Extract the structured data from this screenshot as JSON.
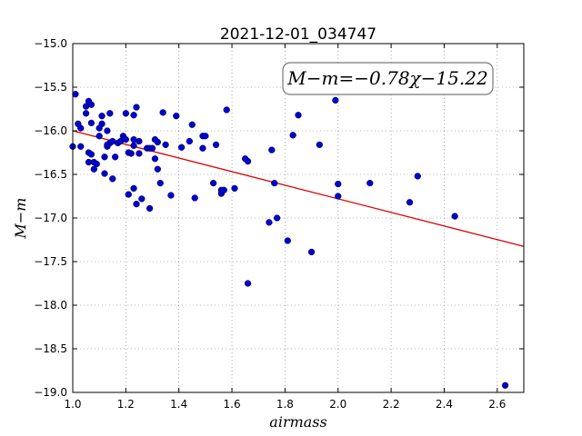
{
  "chart_data": {
    "type": "scatter",
    "title": "2021-12-01_034747",
    "xlabel": "airmass",
    "ylabel": "M−m",
    "xlim": [
      1.0,
      2.7
    ],
    "ylim": [
      -19.0,
      -15.0
    ],
    "y_inverted": true,
    "grid": true,
    "x_ticks": [
      "1.0",
      "1.2",
      "1.4",
      "1.6",
      "1.8",
      "2.0",
      "2.2",
      "2.4",
      "2.6"
    ],
    "y_ticks": [
      "−15.0",
      "−15.5",
      "−16.0",
      "−16.5",
      "−17.0",
      "−17.5",
      "−18.0",
      "−18.5",
      "−19.0"
    ],
    "annotation": "M−m=−0.78χ−15.22",
    "annotation_placement": "top-right",
    "colors": {
      "points": "#0000cc",
      "fit_line": "#dd0000"
    },
    "fit": {
      "slope": -0.78,
      "intercept": -15.22
    },
    "points": [
      [
        1.0,
        -16.18
      ],
      [
        1.01,
        -15.58
      ],
      [
        1.02,
        -15.92
      ],
      [
        1.03,
        -15.97
      ],
      [
        1.03,
        -16.18
      ],
      [
        1.05,
        -15.72
      ],
      [
        1.05,
        -15.8
      ],
      [
        1.06,
        -15.66
      ],
      [
        1.06,
        -16.36
      ],
      [
        1.06,
        -16.25
      ],
      [
        1.07,
        -15.7
      ],
      [
        1.07,
        -15.91
      ],
      [
        1.07,
        -16.27
      ],
      [
        1.08,
        -16.44
      ],
      [
        1.08,
        -16.36
      ],
      [
        1.09,
        -16.38
      ],
      [
        1.1,
        -16.06
      ],
      [
        1.1,
        -15.97
      ],
      [
        1.11,
        -15.83
      ],
      [
        1.11,
        -15.92
      ],
      [
        1.12,
        -16.3
      ],
      [
        1.12,
        -16.49
      ],
      [
        1.13,
        -16.18
      ],
      [
        1.13,
        -16.0
      ],
      [
        1.13,
        -16.16
      ],
      [
        1.14,
        -15.8
      ],
      [
        1.14,
        -16.14
      ],
      [
        1.15,
        -16.55
      ],
      [
        1.15,
        -16.12
      ],
      [
        1.16,
        -16.3
      ],
      [
        1.17,
        -16.14
      ],
      [
        1.18,
        -16.12
      ],
      [
        1.19,
        -16.06
      ],
      [
        1.2,
        -16.1
      ],
      [
        1.2,
        -15.8
      ],
      [
        1.21,
        -16.25
      ],
      [
        1.21,
        -16.73
      ],
      [
        1.22,
        -16.26
      ],
      [
        1.23,
        -16.1
      ],
      [
        1.23,
        -16.17
      ],
      [
        1.23,
        -15.82
      ],
      [
        1.23,
        -16.66
      ],
      [
        1.24,
        -15.73
      ],
      [
        1.24,
        -16.84
      ],
      [
        1.25,
        -16.12
      ],
      [
        1.25,
        -16.26
      ],
      [
        1.26,
        -16.78
      ],
      [
        1.28,
        -16.2
      ],
      [
        1.29,
        -16.2
      ],
      [
        1.29,
        -16.89
      ],
      [
        1.3,
        -16.2
      ],
      [
        1.31,
        -16.32
      ],
      [
        1.31,
        -16.1
      ],
      [
        1.32,
        -16.13
      ],
      [
        1.32,
        -16.44
      ],
      [
        1.33,
        -16.6
      ],
      [
        1.34,
        -15.79
      ],
      [
        1.35,
        -16.16
      ],
      [
        1.37,
        -16.74
      ],
      [
        1.39,
        -15.83
      ],
      [
        1.41,
        -16.19
      ],
      [
        1.44,
        -16.12
      ],
      [
        1.45,
        -15.93
      ],
      [
        1.46,
        -16.77
      ],
      [
        1.49,
        -16.06
      ],
      [
        1.49,
        -16.2
      ],
      [
        1.5,
        -16.06
      ],
      [
        1.53,
        -16.6
      ],
      [
        1.54,
        -16.16
      ],
      [
        1.56,
        -16.72
      ],
      [
        1.56,
        -16.68
      ],
      [
        1.57,
        -16.68
      ],
      [
        1.58,
        -15.76
      ],
      [
        1.61,
        -16.66
      ],
      [
        1.65,
        -16.32
      ],
      [
        1.66,
        -16.35
      ],
      [
        1.66,
        -17.75
      ],
      [
        1.74,
        -17.05
      ],
      [
        1.75,
        -16.22
      ],
      [
        1.76,
        -16.6
      ],
      [
        1.77,
        -17.0
      ],
      [
        1.81,
        -17.26
      ],
      [
        1.83,
        -16.05
      ],
      [
        1.85,
        -15.82
      ],
      [
        1.9,
        -17.39
      ],
      [
        1.93,
        -16.16
      ],
      [
        1.99,
        -15.65
      ],
      [
        2.0,
        -16.61
      ],
      [
        2.0,
        -16.75
      ],
      [
        2.12,
        -16.6
      ],
      [
        2.27,
        -16.82
      ],
      [
        2.3,
        -16.52
      ],
      [
        2.44,
        -16.98
      ],
      [
        2.63,
        -18.92
      ]
    ]
  }
}
